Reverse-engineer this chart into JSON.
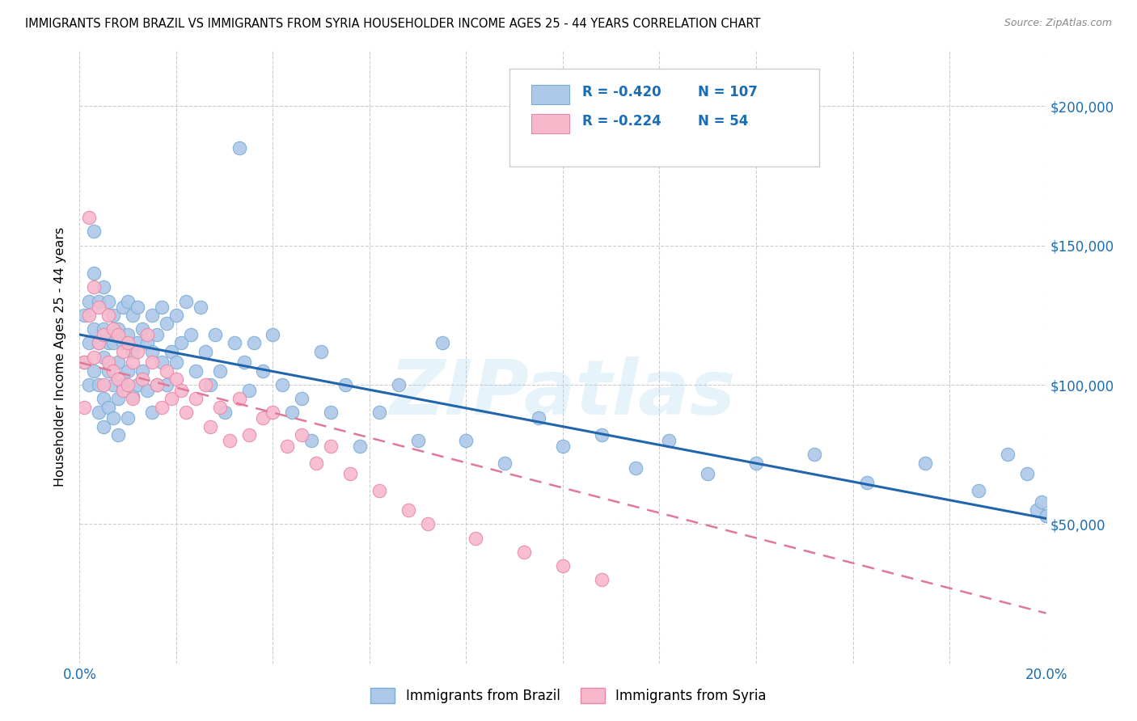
{
  "title": "IMMIGRANTS FROM BRAZIL VS IMMIGRANTS FROM SYRIA HOUSEHOLDER INCOME AGES 25 - 44 YEARS CORRELATION CHART",
  "source": "Source: ZipAtlas.com",
  "ylabel": "Householder Income Ages 25 - 44 years",
  "x_min": 0.0,
  "x_max": 0.2,
  "y_min": 0,
  "y_max": 220000,
  "x_ticks": [
    0.0,
    0.02,
    0.04,
    0.06,
    0.08,
    0.1,
    0.12,
    0.14,
    0.16,
    0.18,
    0.2
  ],
  "x_tick_labels": [
    "0.0%",
    "",
    "",
    "",
    "",
    "",
    "",
    "",
    "",
    "",
    "20.0%"
  ],
  "y_ticks": [
    50000,
    100000,
    150000,
    200000
  ],
  "y_tick_labels": [
    "$50,000",
    "$100,000",
    "$150,000",
    "$200,000"
  ],
  "brazil_color": "#adc8e8",
  "brazil_edge_color": "#7aadd4",
  "brazil_line_color": "#2166ac",
  "syria_color": "#f7b8cc",
  "syria_edge_color": "#e888a8",
  "syria_line_color": "#e07898",
  "brazil_R": -0.42,
  "brazil_N": 107,
  "syria_R": -0.224,
  "syria_N": 54,
  "legend_label_brazil": "Immigrants from Brazil",
  "legend_label_syria": "Immigrants from Syria",
  "watermark": "ZIPatlas",
  "brazil_line_y0": 118000,
  "brazil_line_y1": 52000,
  "syria_line_y0": 108000,
  "syria_line_y1": 18000,
  "brazil_x": [
    0.001,
    0.001,
    0.002,
    0.002,
    0.002,
    0.003,
    0.003,
    0.003,
    0.003,
    0.004,
    0.004,
    0.004,
    0.004,
    0.005,
    0.005,
    0.005,
    0.005,
    0.005,
    0.006,
    0.006,
    0.006,
    0.006,
    0.007,
    0.007,
    0.007,
    0.007,
    0.008,
    0.008,
    0.008,
    0.008,
    0.009,
    0.009,
    0.009,
    0.01,
    0.01,
    0.01,
    0.01,
    0.011,
    0.011,
    0.011,
    0.012,
    0.012,
    0.012,
    0.013,
    0.013,
    0.014,
    0.014,
    0.015,
    0.015,
    0.015,
    0.016,
    0.016,
    0.017,
    0.017,
    0.018,
    0.018,
    0.019,
    0.02,
    0.02,
    0.021,
    0.022,
    0.023,
    0.024,
    0.025,
    0.026,
    0.027,
    0.028,
    0.029,
    0.03,
    0.032,
    0.033,
    0.034,
    0.035,
    0.036,
    0.038,
    0.04,
    0.042,
    0.044,
    0.046,
    0.048,
    0.05,
    0.052,
    0.055,
    0.058,
    0.062,
    0.066,
    0.07,
    0.075,
    0.08,
    0.088,
    0.095,
    0.1,
    0.108,
    0.115,
    0.122,
    0.13,
    0.14,
    0.152,
    0.163,
    0.175,
    0.186,
    0.192,
    0.196,
    0.198,
    0.199,
    0.2,
    0.2
  ],
  "brazil_y": [
    108000,
    125000,
    130000,
    115000,
    100000,
    155000,
    140000,
    120000,
    105000,
    130000,
    115000,
    100000,
    90000,
    135000,
    120000,
    110000,
    95000,
    85000,
    130000,
    115000,
    105000,
    92000,
    125000,
    115000,
    100000,
    88000,
    120000,
    108000,
    95000,
    82000,
    128000,
    115000,
    100000,
    130000,
    118000,
    105000,
    88000,
    125000,
    112000,
    96000,
    128000,
    115000,
    100000,
    120000,
    105000,
    115000,
    98000,
    125000,
    112000,
    90000,
    118000,
    100000,
    128000,
    108000,
    122000,
    100000,
    112000,
    125000,
    108000,
    115000,
    130000,
    118000,
    105000,
    128000,
    112000,
    100000,
    118000,
    105000,
    90000,
    115000,
    185000,
    108000,
    98000,
    115000,
    105000,
    118000,
    100000,
    90000,
    95000,
    80000,
    112000,
    90000,
    100000,
    78000,
    90000,
    100000,
    80000,
    115000,
    80000,
    72000,
    88000,
    78000,
    82000,
    70000,
    80000,
    68000,
    72000,
    75000,
    65000,
    72000,
    62000,
    75000,
    68000,
    55000,
    58000,
    53000,
    53000
  ],
  "syria_x": [
    0.001,
    0.001,
    0.002,
    0.002,
    0.003,
    0.003,
    0.004,
    0.004,
    0.005,
    0.005,
    0.006,
    0.006,
    0.007,
    0.007,
    0.008,
    0.008,
    0.009,
    0.009,
    0.01,
    0.01,
    0.011,
    0.011,
    0.012,
    0.013,
    0.014,
    0.015,
    0.016,
    0.017,
    0.018,
    0.019,
    0.02,
    0.021,
    0.022,
    0.024,
    0.026,
    0.027,
    0.029,
    0.031,
    0.033,
    0.035,
    0.038,
    0.04,
    0.043,
    0.046,
    0.049,
    0.052,
    0.056,
    0.062,
    0.068,
    0.072,
    0.082,
    0.092,
    0.1,
    0.108
  ],
  "syria_y": [
    108000,
    92000,
    160000,
    125000,
    135000,
    110000,
    128000,
    115000,
    118000,
    100000,
    125000,
    108000,
    120000,
    105000,
    118000,
    102000,
    112000,
    98000,
    115000,
    100000,
    108000,
    95000,
    112000,
    102000,
    118000,
    108000,
    100000,
    92000,
    105000,
    95000,
    102000,
    98000,
    90000,
    95000,
    100000,
    85000,
    92000,
    80000,
    95000,
    82000,
    88000,
    90000,
    78000,
    82000,
    72000,
    78000,
    68000,
    62000,
    55000,
    50000,
    45000,
    40000,
    35000,
    30000
  ]
}
